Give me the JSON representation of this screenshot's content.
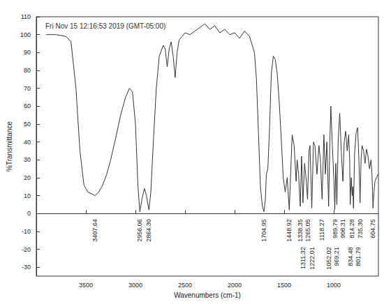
{
  "chart_data": {
    "type": "line",
    "title": "Fri Nov 15 12:16:53 2019 (GMT-05:00)",
    "x_label": "Wavenumbers (cm-1)",
    "y_label": "%Transmittance",
    "color": "#333333",
    "grid": false,
    "xlim": [
      4000,
      550
    ],
    "xticks": [
      3500,
      3000,
      2500,
      2000,
      1500,
      1000
    ],
    "ylim": [
      -35,
      110
    ],
    "yticks": [
      -30,
      -20,
      -10,
      0,
      10,
      20,
      30,
      40,
      50,
      60,
      70,
      80,
      90,
      100,
      110
    ],
    "x": [
      3900,
      3800,
      3700,
      3650,
      3600,
      3560,
      3520,
      3480,
      3440,
      3407.64,
      3370,
      3330,
      3290,
      3250,
      3200,
      3150,
      3100,
      3060,
      3030,
      3000,
      2975,
      2956.06,
      2935,
      2910,
      2890,
      2864.3,
      2845,
      2820,
      2790,
      2760,
      2720,
      2700,
      2680,
      2660,
      2640,
      2620,
      2600,
      2580,
      2560,
      2530,
      2500,
      2450,
      2400,
      2350,
      2300,
      2250,
      2200,
      2150,
      2100,
      2050,
      2000,
      1950,
      1900,
      1850,
      1800,
      1780,
      1760,
      1740,
      1720,
      1704.95,
      1690,
      1680,
      1665,
      1650,
      1630,
      1610,
      1590,
      1570,
      1550,
      1530,
      1510,
      1490,
      1470,
      1448.92,
      1430,
      1420,
      1400,
      1380,
      1370,
      1355,
      1338.35,
      1325,
      1311.32,
      1295,
      1280,
      1265.05,
      1250,
      1240,
      1222.01,
      1205,
      1190,
      1170,
      1150,
      1135,
      1118.27,
      1100,
      1085,
      1070,
      1052.02,
      1040,
      1030,
      1015,
      1000,
      989.79,
      980,
      969.21,
      955,
      940,
      925,
      908.31,
      895,
      880,
      865,
      850,
      840,
      834.48,
      824,
      814.28,
      808,
      801.79,
      790,
      775,
      760,
      748,
      735.3,
      725,
      715,
      700,
      685,
      670,
      655,
      640,
      625,
      615,
      604.75,
      595,
      585,
      570,
      555
    ],
    "values": [
      100,
      100,
      99,
      96,
      70,
      35,
      16,
      12,
      11,
      10,
      12,
      16,
      22,
      30,
      42,
      55,
      65,
      70,
      68,
      50,
      15,
      1,
      8,
      14,
      10,
      2,
      12,
      40,
      70,
      88,
      94,
      92,
      82,
      92,
      96,
      88,
      76,
      90,
      97,
      99,
      101,
      100,
      102,
      104,
      106,
      103,
      105,
      101,
      103,
      100,
      101,
      98,
      102,
      99,
      90,
      75,
      45,
      15,
      4,
      1,
      8,
      22,
      25,
      45,
      78,
      88,
      86,
      78,
      62,
      42,
      20,
      12,
      20,
      2,
      30,
      44,
      38,
      18,
      30,
      22,
      4,
      32,
      6,
      28,
      20,
      8,
      35,
      38,
      3,
      40,
      38,
      22,
      38,
      30,
      8,
      44,
      22,
      40,
      4,
      40,
      60,
      38,
      20,
      2,
      28,
      5,
      42,
      56,
      35,
      18,
      40,
      46,
      35,
      44,
      30,
      5,
      20,
      10,
      15,
      3,
      34,
      45,
      48,
      32,
      6,
      30,
      38,
      35,
      28,
      36,
      32,
      25,
      30,
      22,
      3,
      12,
      18,
      20,
      22
    ],
    "peaks": [
      {
        "x": 3407.64,
        "label": "3407.64"
      },
      {
        "x": 2956.06,
        "label": "2956.06"
      },
      {
        "x": 2864.3,
        "label": "2864.30"
      },
      {
        "x": 1704.95,
        "label": "1704.95"
      },
      {
        "x": 1448.92,
        "label": "1448.92"
      },
      {
        "x": 1338.35,
        "label": "1338.35"
      },
      {
        "x": 1311.32,
        "label": "1311.32"
      },
      {
        "x": 1265.05,
        "label": "1265.05"
      },
      {
        "x": 1222.01,
        "label": "1222.01"
      },
      {
        "x": 1118.27,
        "label": "1118.27"
      },
      {
        "x": 1052.02,
        "label": "1052.02"
      },
      {
        "x": 989.79,
        "label": "989.79"
      },
      {
        "x": 969.21,
        "label": "969.21"
      },
      {
        "x": 908.31,
        "label": "908.31"
      },
      {
        "x": 834.48,
        "label": "834.48"
      },
      {
        "x": 814.28,
        "label": "814.28"
      },
      {
        "x": 801.79,
        "label": "801.79"
      },
      {
        "x": 735.3,
        "label": "735.30"
      },
      {
        "x": 604.75,
        "label": "604.75"
      }
    ]
  }
}
